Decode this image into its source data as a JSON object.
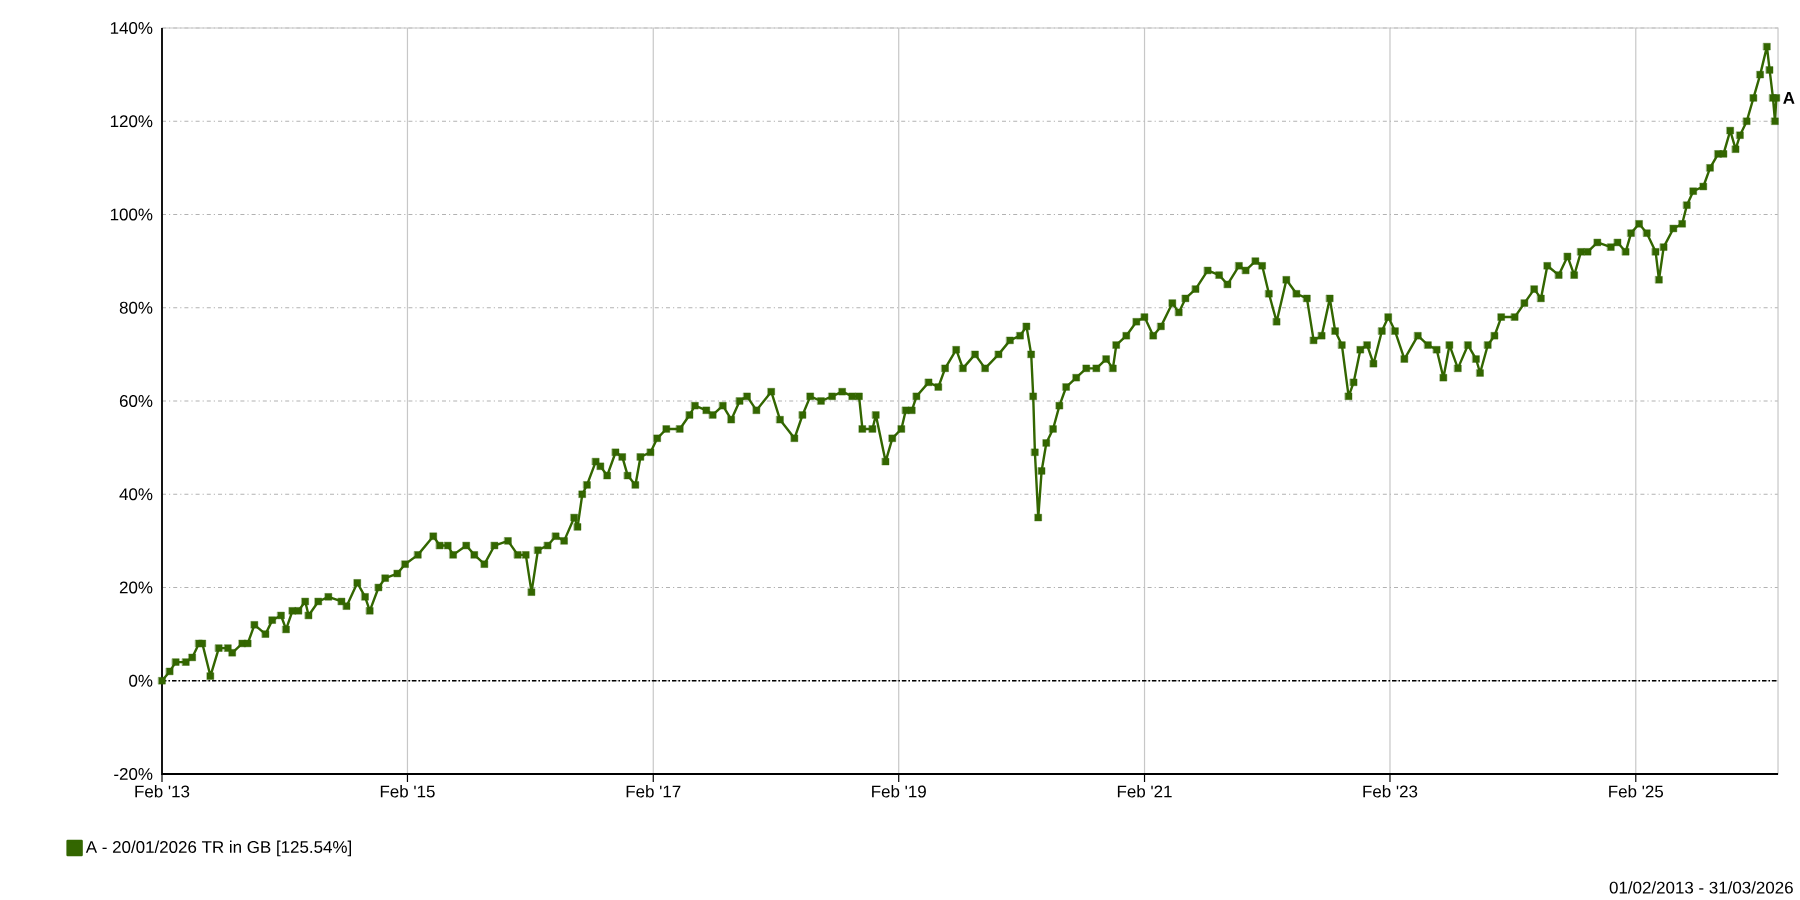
{
  "chart_data": {
    "type": "line",
    "x": [
      "2013-02-01",
      "2013-02-24",
      "2013-03-14",
      "2013-04-13",
      "2013-05-02",
      "2013-05-22",
      "2013-06-01",
      "2013-06-25",
      "2013-07-20",
      "2013-08-16",
      "2013-08-29",
      "2013-09-28",
      "2013-10-14",
      "2013-11-03",
      "2013-12-06",
      "2013-12-26",
      "2014-01-21",
      "2014-02-05",
      "2014-02-24",
      "2014-03-14",
      "2014-04-03",
      "2014-04-13",
      "2014-05-12",
      "2014-06-11",
      "2014-07-20",
      "2014-08-04",
      "2014-09-05",
      "2014-09-28",
      "2014-10-12",
      "2014-11-07",
      "2014-11-27",
      "2015-01-02",
      "2015-01-25",
      "2015-03-04",
      "2015-04-19",
      "2015-05-08",
      "2015-06-01",
      "2015-06-17",
      "2015-07-26",
      "2015-08-19",
      "2015-09-18",
      "2015-10-18",
      "2015-11-27",
      "2015-12-26",
      "2016-01-19",
      "2016-02-05",
      "2016-02-24",
      "2016-03-24",
      "2016-04-17",
      "2016-05-12",
      "2016-06-11",
      "2016-06-21",
      "2016-07-05",
      "2016-07-19",
      "2016-08-14",
      "2016-08-28",
      "2016-09-17",
      "2016-10-12",
      "2016-11-01",
      "2016-11-17",
      "2016-12-10",
      "2016-12-25",
      "2017-01-24",
      "2017-02-13",
      "2017-03-12",
      "2017-04-21",
      "2017-05-20",
      "2017-06-05",
      "2017-07-09",
      "2017-07-28",
      "2017-08-27",
      "2017-09-21",
      "2017-10-16",
      "2017-11-07",
      "2017-12-05",
      "2018-01-18",
      "2018-02-13",
      "2018-03-28",
      "2018-04-21",
      "2018-05-14",
      "2018-06-15",
      "2018-07-18",
      "2018-08-17",
      "2018-09-16",
      "2018-10-06",
      "2018-10-16",
      "2018-11-15",
      "2018-11-25",
      "2018-12-24",
      "2019-01-13",
      "2019-02-09",
      "2019-02-22",
      "2019-03-12",
      "2019-03-26",
      "2019-05-01",
      "2019-05-30",
      "2019-06-19",
      "2019-07-22",
      "2019-08-11",
      "2019-09-16",
      "2019-10-16",
      "2019-11-25",
      "2019-12-29",
      "2020-01-28",
      "2020-02-16",
      "2020-03-01",
      "2020-03-07",
      "2020-03-12",
      "2020-03-22",
      "2020-04-01",
      "2020-04-15",
      "2020-05-05",
      "2020-05-24",
      "2020-06-13",
      "2020-07-13",
      "2020-08-12",
      "2020-09-11",
      "2020-10-10",
      "2020-10-30",
      "2020-11-09",
      "2020-12-09",
      "2021-01-08",
      "2021-02-01",
      "2021-02-27",
      "2021-03-22",
      "2021-04-25",
      "2021-05-14",
      "2021-06-03",
      "2021-07-03",
      "2021-08-08",
      "2021-09-11",
      "2021-10-06",
      "2021-11-09",
      "2021-11-29",
      "2021-12-28",
      "2022-01-17",
      "2022-02-06",
      "2022-03-01",
      "2022-03-30",
      "2022-04-29",
      "2022-05-30",
      "2022-06-19",
      "2022-07-13",
      "2022-08-06",
      "2022-08-22",
      "2022-09-11",
      "2022-10-01",
      "2022-10-16",
      "2022-11-05",
      "2022-11-25",
      "2022-12-14",
      "2023-01-08",
      "2023-01-27",
      "2023-02-16",
      "2023-03-16",
      "2023-04-25",
      "2023-05-25",
      "2023-06-20",
      "2023-07-10",
      "2023-07-28",
      "2023-08-22",
      "2023-09-21",
      "2023-10-15",
      "2023-10-27",
      "2023-11-19",
      "2023-12-09",
      "2023-12-29",
      "2024-02-07",
      "2024-03-07",
      "2024-04-05",
      "2024-04-25",
      "2024-05-14",
      "2024-06-17",
      "2024-07-13",
      "2024-08-02",
      "2024-08-22",
      "2024-09-11",
      "2024-10-10",
      "2024-11-19",
      "2024-12-09",
      "2025-01-02",
      "2025-01-18",
      "2025-02-11",
      "2025-03-06",
      "2025-04-01",
      "2025-04-11",
      "2025-04-25",
      "2025-05-24",
      "2025-06-19",
      "2025-07-03",
      "2025-07-22",
      "2025-08-21",
      "2025-09-10",
      "2025-10-04",
      "2025-10-20",
      "2025-11-09",
      "2025-11-25",
      "2025-12-08",
      "2025-12-28",
      "2026-01-17",
      "2026-02-06",
      "2026-02-26",
      "2026-03-06",
      "2026-03-16",
      "2026-03-22",
      "2026-03-26"
    ],
    "series": [
      {
        "name": "A - 20/01/2026 TR in GB [125.54%]",
        "color": "#336600",
        "values": [
          0,
          2,
          4,
          4,
          5,
          8,
          8,
          1,
          7,
          7,
          6,
          8,
          8,
          12,
          10,
          13,
          14,
          11,
          15,
          15,
          17,
          14,
          17,
          18,
          17,
          16,
          21,
          18,
          15,
          20,
          22,
          23,
          25,
          27,
          31,
          29,
          29,
          27,
          29,
          27,
          25,
          29,
          30,
          27,
          27,
          19,
          28,
          29,
          31,
          30,
          35,
          33,
          40,
          42,
          47,
          46,
          44,
          49,
          48,
          44,
          42,
          48,
          49,
          52,
          54,
          54,
          57,
          59,
          58,
          57,
          59,
          56,
          60,
          61,
          58,
          62,
          56,
          52,
          57,
          61,
          60,
          61,
          62,
          61,
          61,
          54,
          54,
          57,
          47,
          52,
          54,
          58,
          58,
          61,
          64,
          63,
          67,
          71,
          67,
          70,
          67,
          70,
          73,
          74,
          76,
          70,
          61,
          49,
          35,
          45,
          51,
          54,
          59,
          63,
          65,
          67,
          67,
          69,
          67,
          72,
          74,
          77,
          78,
          74,
          76,
          81,
          79,
          82,
          84,
          88,
          87,
          85,
          89,
          88,
          90,
          89,
          83,
          77,
          86,
          83,
          82,
          73,
          74,
          82,
          75,
          72,
          61,
          64,
          71,
          72,
          68,
          75,
          78,
          75,
          69,
          74,
          72,
          71,
          65,
          72,
          67,
          72,
          69,
          66,
          72,
          74,
          78,
          78,
          81,
          84,
          82,
          89,
          87,
          91,
          87,
          92,
          92,
          94,
          93,
          94,
          92,
          96,
          98,
          96,
          92,
          86,
          93,
          97,
          98,
          102,
          105,
          106,
          110,
          113,
          113,
          118,
          114,
          117,
          120,
          125,
          130,
          136,
          131,
          125,
          120,
          125
        ]
      }
    ],
    "xlim": [
      "2013-02-01",
      "2026-03-31"
    ],
    "xticks": [
      {
        "value": "2013-02-01",
        "label": "Feb '13"
      },
      {
        "value": "2015-02-01",
        "label": "Feb '15"
      },
      {
        "value": "2017-02-01",
        "label": "Feb '17"
      },
      {
        "value": "2019-02-01",
        "label": "Feb '19"
      },
      {
        "value": "2021-02-01",
        "label": "Feb '21"
      },
      {
        "value": "2023-02-01",
        "label": "Feb '23"
      },
      {
        "value": "2025-02-01",
        "label": "Feb '25"
      }
    ],
    "ylim": [
      -20,
      140
    ],
    "yticks": [
      {
        "value": -20,
        "label": "-20%"
      },
      {
        "value": 0,
        "label": "0%"
      },
      {
        "value": 20,
        "label": "20%"
      },
      {
        "value": 40,
        "label": "40%"
      },
      {
        "value": 60,
        "label": "60%"
      },
      {
        "value": 80,
        "label": "80%"
      },
      {
        "value": 100,
        "label": "100%"
      },
      {
        "value": 120,
        "label": "120%"
      },
      {
        "value": 140,
        "label": "140%"
      }
    ],
    "grid": true,
    "legend": "bottom",
    "marker": "square",
    "ref_lines": [
      {
        "axis": "y",
        "value": 0,
        "color": "#000000",
        "line_style": "dotted"
      }
    ],
    "annotations": [
      {
        "text": "A",
        "x": "2026-03-26",
        "y": 125
      },
      "01/02/2013 - 31/03/2026"
    ]
  }
}
